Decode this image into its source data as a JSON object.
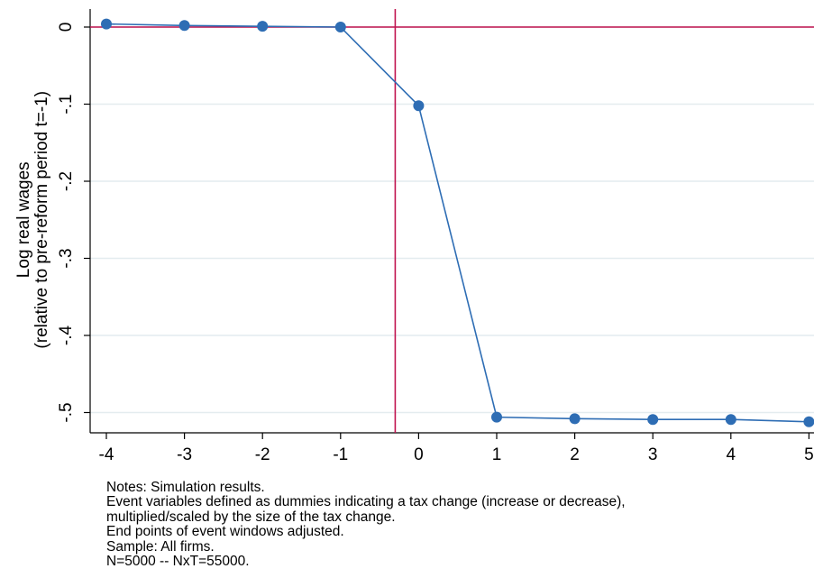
{
  "chart_data": {
    "type": "line",
    "title": "",
    "xlabel": "",
    "ylabel_lines": [
      "Log real wages",
      "(relative to pre-reform period t=-1)"
    ],
    "x": [
      -4,
      -3,
      -2,
      -1,
      0,
      1,
      2,
      3,
      4,
      5
    ],
    "series": [
      {
        "values": [
          0.004,
          0.002,
          0.001,
          0.0,
          -0.102,
          -0.506,
          -0.508,
          -0.509,
          -0.509,
          -0.512
        ]
      }
    ],
    "xlim": [
      -4,
      5
    ],
    "ylim": [
      -0.5,
      0
    ],
    "x_ticks": [
      "-4",
      "-3",
      "-2",
      "-1",
      "0",
      "1",
      "2",
      "3",
      "4",
      "5"
    ],
    "y_ticks": [
      {
        "value": 0,
        "label": "0"
      },
      {
        "value": -0.1,
        "label": "-.1"
      },
      {
        "value": -0.2,
        "label": "-.2"
      },
      {
        "value": -0.3,
        "label": "-.3"
      },
      {
        "value": -0.4,
        "label": "-.4"
      },
      {
        "value": -0.5,
        "label": "-.5"
      }
    ],
    "reference_lines": {
      "horizontal_y": 0,
      "vertical_x": -0.3
    },
    "grid": true,
    "colors": {
      "series": "#2e6db4",
      "reference": "#c0134f",
      "grid": "#e4ecef"
    }
  },
  "notes": [
    "Notes: Simulation results.",
    "Event variables defined as dummies indicating a tax change (increase or decrease),",
    "multiplied/scaled by the size of the tax change.",
    "End points of event windows adjusted.",
    "Sample: All firms.",
    "N=5000 -- NxT=55000."
  ]
}
